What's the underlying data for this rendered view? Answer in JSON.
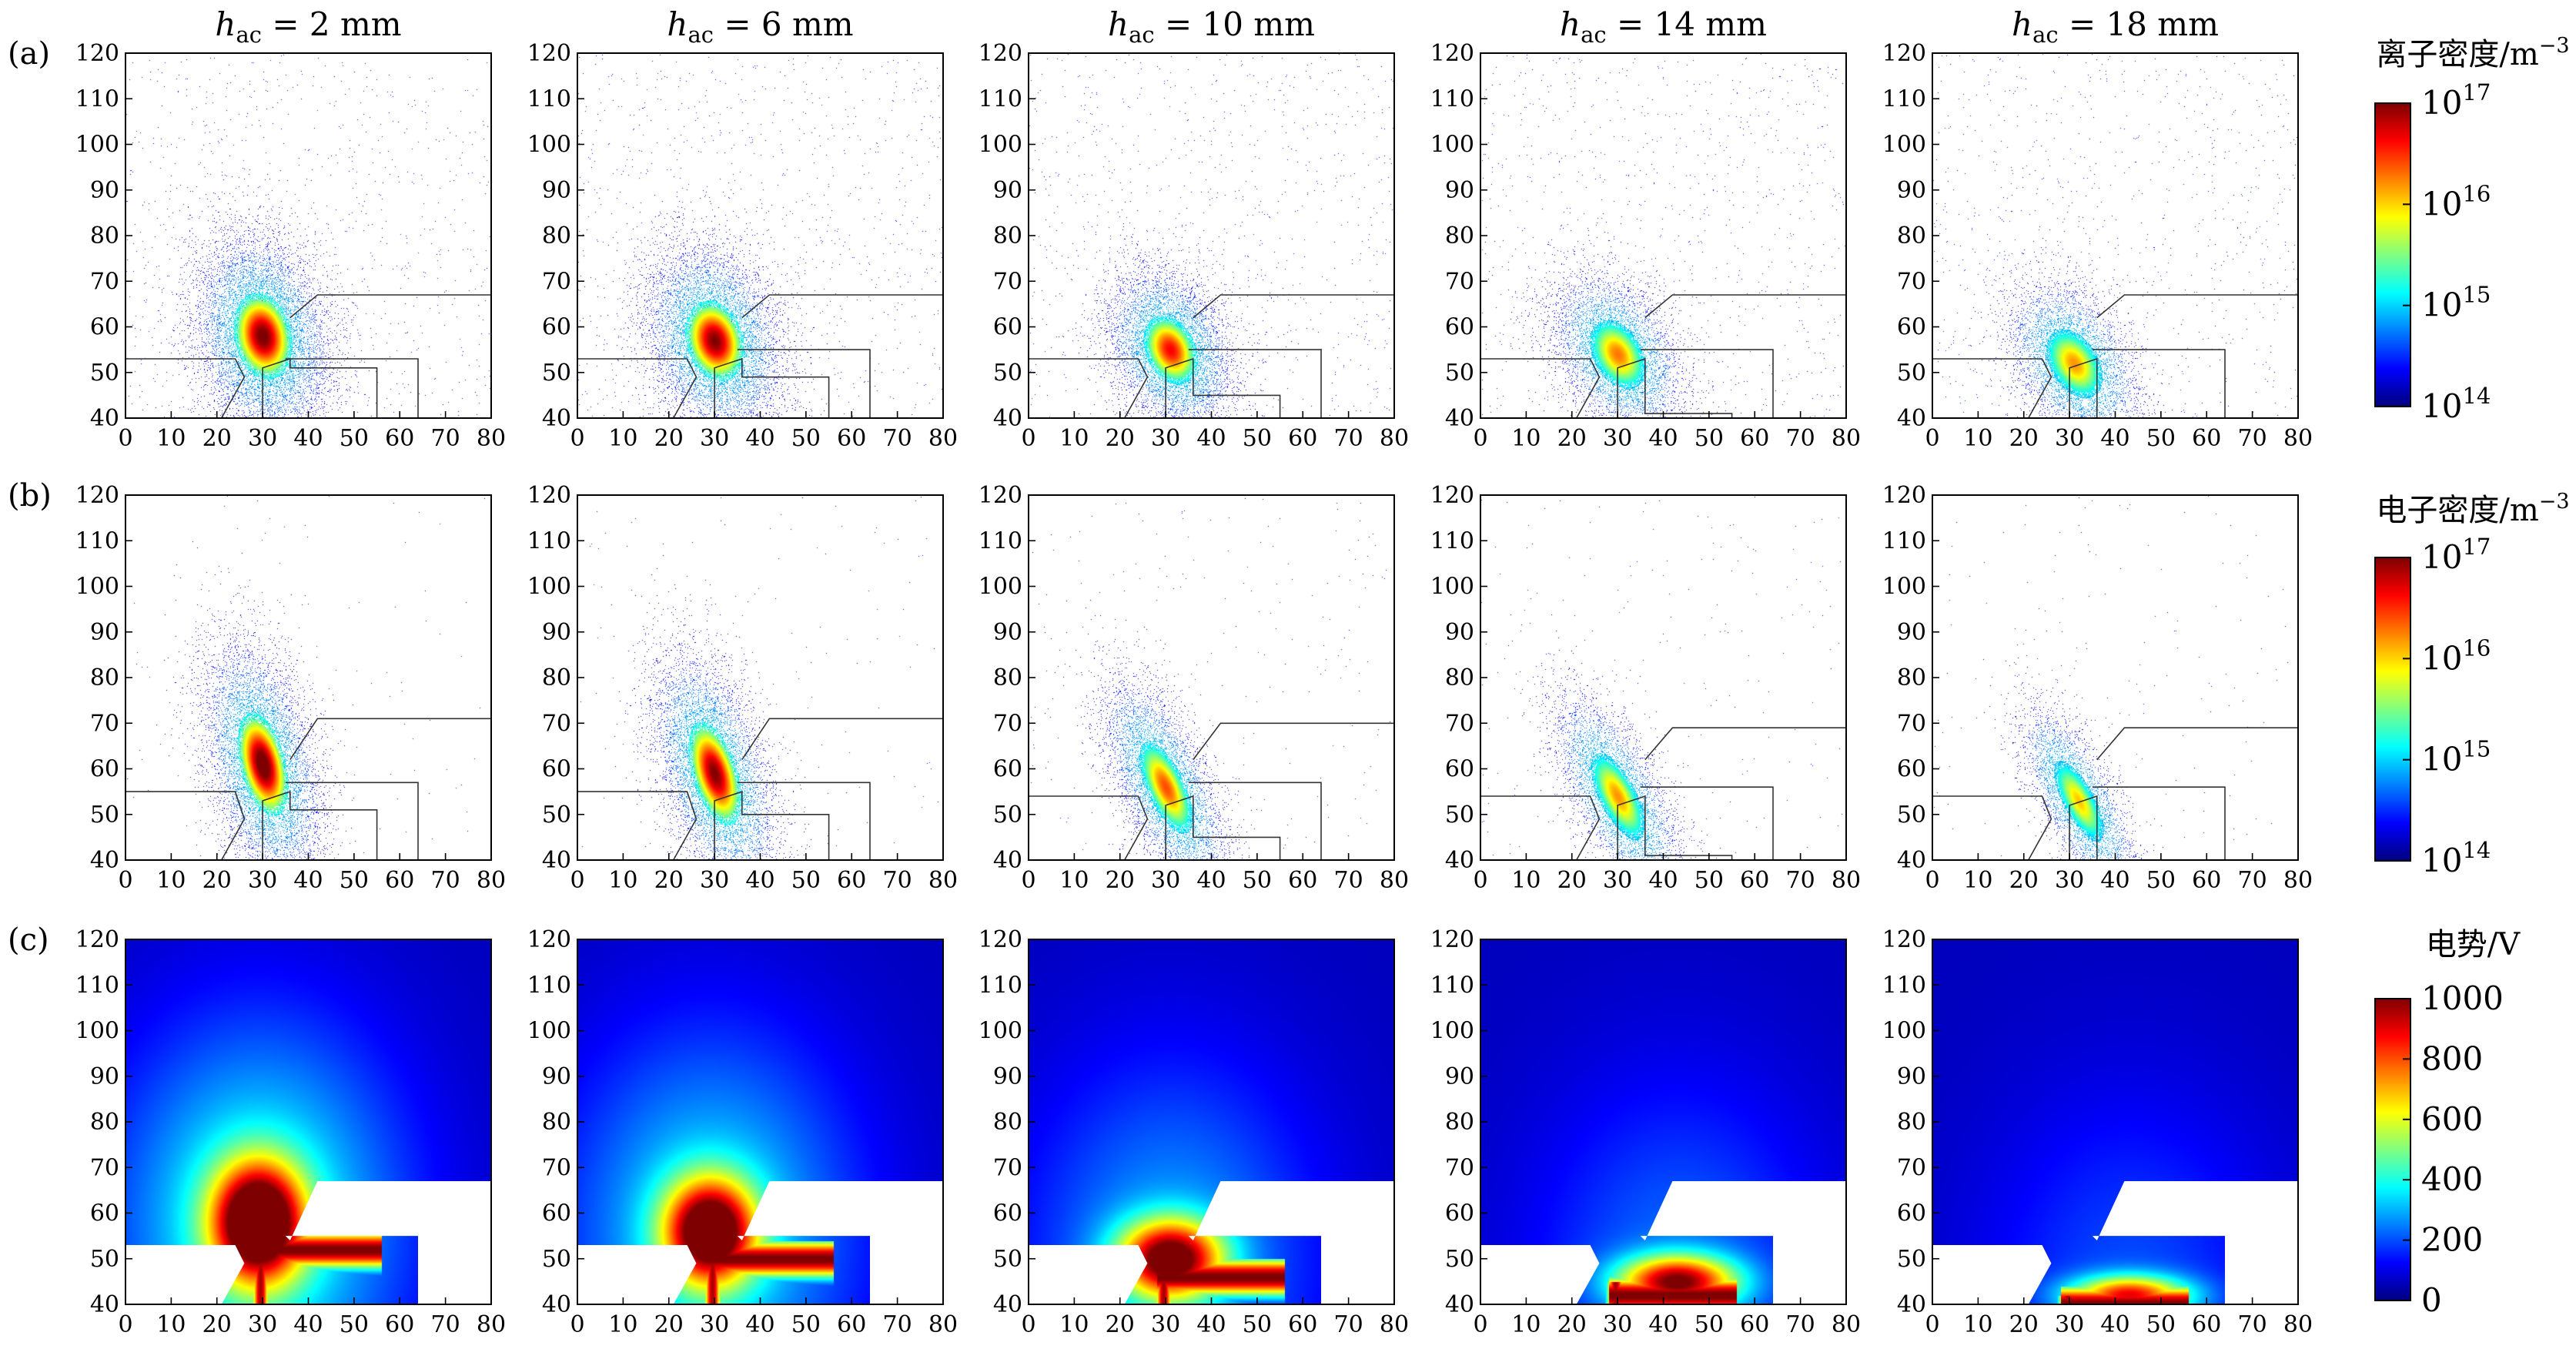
{
  "figure": {
    "column_titles": [
      {
        "pre": "h",
        "sub": "ac",
        "post": " = 2 mm"
      },
      {
        "pre": "h",
        "sub": "ac",
        "post": " = 6 mm"
      },
      {
        "pre": "h",
        "sub": "ac",
        "post": " = 10 mm"
      },
      {
        "pre": "h",
        "sub": "ac",
        "post": " = 14 mm"
      },
      {
        "pre": "h",
        "sub": "ac",
        "post": " = 18 mm"
      }
    ],
    "row_labels": [
      "(a)",
      "(b)",
      "(c)"
    ],
    "colorbars": [
      {
        "title": "离子密度/m",
        "title_sup": "−3",
        "scale": "log",
        "ticks": [
          {
            "base": "10",
            "exp": "17"
          },
          {
            "base": "10",
            "exp": "16"
          },
          {
            "base": "10",
            "exp": "15"
          },
          {
            "base": "10",
            "exp": "14"
          }
        ]
      },
      {
        "title": "电子密度/m",
        "title_sup": "−3",
        "scale": "log",
        "ticks": [
          {
            "base": "10",
            "exp": "17"
          },
          {
            "base": "10",
            "exp": "16"
          },
          {
            "base": "10",
            "exp": "15"
          },
          {
            "base": "10",
            "exp": "14"
          }
        ]
      },
      {
        "title": "电势/V",
        "title_sup": "",
        "scale": "linear",
        "ticks": [
          {
            "base": "1000"
          },
          {
            "base": "800"
          },
          {
            "base": "600"
          },
          {
            "base": "400"
          },
          {
            "base": "200"
          },
          {
            "base": "0"
          }
        ]
      }
    ],
    "colormap": [
      "#00007f",
      "#0000ff",
      "#0080ff",
      "#00ffff",
      "#80ff80",
      "#ffff00",
      "#ff8000",
      "#ff0000",
      "#7f0000"
    ]
  },
  "chart_data": {
    "type": "heatmap",
    "layout": "3 rows x 5 columns",
    "x_ticks": [
      0,
      10,
      20,
      30,
      40,
      50,
      60,
      70,
      80
    ],
    "y_ticks": [
      40,
      50,
      60,
      70,
      80,
      90,
      100,
      110,
      120
    ],
    "xlim": [
      0,
      80
    ],
    "ylim": [
      40,
      120
    ],
    "grid": false,
    "rows": [
      {
        "label": "(a)",
        "quantity": "ion density",
        "colorbar_index": 0,
        "colorbar_range": [
          "1e14",
          "1e17"
        ],
        "render": "scatter"
      },
      {
        "label": "(b)",
        "quantity": "electron density",
        "colorbar_index": 1,
        "colorbar_range": [
          "1e14",
          "1e17"
        ],
        "render": "scatter"
      },
      {
        "label": "(c)",
        "quantity": "potential",
        "colorbar_index": 2,
        "colorbar_range": [
          0,
          1000
        ],
        "render": "field"
      }
    ],
    "panels": [
      {
        "row": 0,
        "col": 0,
        "center": [
          30,
          58
        ],
        "sigma": [
          5,
          7.5
        ],
        "tilt": 0.12,
        "peak": 0.84,
        "halo_points": 9000,
        "background_points": 900,
        "bottom_block_top": 53,
        "anode_top": 53,
        "low_step_top": 51,
        "cathode_top": 67
      },
      {
        "row": 0,
        "col": 1,
        "center": [
          30,
          57
        ],
        "sigma": [
          5,
          7
        ],
        "tilt": 0.15,
        "peak": 0.82,
        "halo_points": 8000,
        "background_points": 900,
        "bottom_block_top": 53,
        "anode_top": 55,
        "low_step_top": 49,
        "cathode_top": 67
      },
      {
        "row": 0,
        "col": 2,
        "center": [
          31,
          55
        ],
        "sigma": [
          4.5,
          6
        ],
        "tilt": 0.22,
        "peak": 0.7,
        "halo_points": 6500,
        "background_points": 900,
        "bottom_block_top": 53,
        "anode_top": 55,
        "low_step_top": 45,
        "cathode_top": 67
      },
      {
        "row": 0,
        "col": 3,
        "center": [
          30,
          54
        ],
        "sigma": [
          4.5,
          6
        ],
        "tilt": 0.3,
        "peak": 0.58,
        "halo_points": 5500,
        "background_points": 900,
        "bottom_block_top": 53,
        "anode_top": 55,
        "low_step_top": 41,
        "cathode_top": 67
      },
      {
        "row": 0,
        "col": 4,
        "center": [
          31,
          52
        ],
        "sigma": [
          4.5,
          6
        ],
        "tilt": 0.32,
        "peak": 0.55,
        "halo_points": 5000,
        "background_points": 900,
        "bottom_block_top": 53,
        "anode_top": 55,
        "low_step_top": 37,
        "cathode_top": 67
      },
      {
        "row": 1,
        "col": 0,
        "center": [
          30,
          61
        ],
        "sigma": [
          4,
          9
        ],
        "tilt": 0.2,
        "peak": 0.88,
        "halo_points": 8000,
        "background_points": 120,
        "bottom_block_top": 55,
        "anode_top": 57,
        "low_step_top": 51,
        "cathode_top": 71
      },
      {
        "row": 1,
        "col": 1,
        "center": [
          30,
          59
        ],
        "sigma": [
          4,
          9
        ],
        "tilt": 0.25,
        "peak": 0.82,
        "halo_points": 7500,
        "background_points": 150,
        "bottom_block_top": 55,
        "anode_top": 57,
        "low_step_top": 50,
        "cathode_top": 71
      },
      {
        "row": 1,
        "col": 2,
        "center": [
          30,
          56
        ],
        "sigma": [
          3.5,
          8
        ],
        "tilt": 0.38,
        "peak": 0.62,
        "halo_points": 6000,
        "background_points": 250,
        "bottom_block_top": 54,
        "anode_top": 57,
        "low_step_top": 45,
        "cathode_top": 70
      },
      {
        "row": 1,
        "col": 3,
        "center": [
          30,
          54
        ],
        "sigma": [
          3.5,
          7.5
        ],
        "tilt": 0.42,
        "peak": 0.55,
        "halo_points": 5000,
        "background_points": 220,
        "bottom_block_top": 54,
        "anode_top": 56,
        "low_step_top": 41,
        "cathode_top": 69
      },
      {
        "row": 1,
        "col": 4,
        "center": [
          32,
          53
        ],
        "sigma": [
          3,
          7
        ],
        "tilt": 0.45,
        "peak": 0.5,
        "halo_points": 4000,
        "background_points": 180,
        "bottom_block_top": 54,
        "anode_top": 56,
        "low_step_top": 37,
        "cathode_top": 69
      },
      {
        "row": 2,
        "col": 0,
        "center": [
          29,
          58
        ],
        "sigma": [
          7,
          9
        ],
        "tilt": 0,
        "peak": 0.95,
        "spread": 1.0,
        "hot_plate_top": 53,
        "hot_plate_bottom": 51,
        "bottom_block_top": 53,
        "anode_top": 55,
        "low_step_top": 51,
        "cathode_top": 67
      },
      {
        "row": 2,
        "col": 1,
        "center": [
          29,
          56
        ],
        "sigma": [
          7,
          8
        ],
        "tilt": 0,
        "peak": 0.9,
        "spread": 0.85,
        "hot_plate_top": 51,
        "hot_plate_bottom": 49,
        "bottom_block_top": 53,
        "anode_top": 55,
        "low_step_top": 49,
        "cathode_top": 67
      },
      {
        "row": 2,
        "col": 2,
        "center": [
          31,
          50
        ],
        "sigma": [
          8,
          6
        ],
        "tilt": 0,
        "peak": 0.85,
        "spread": 0.65,
        "hot_plate_top": 47,
        "hot_plate_bottom": 45,
        "bottom_block_top": 53,
        "anode_top": 55,
        "low_step_top": 45,
        "cathode_top": 67
      },
      {
        "row": 2,
        "col": 3,
        "center": [
          43,
          45
        ],
        "sigma": [
          9,
          4
        ],
        "tilt": 0,
        "peak": 0.8,
        "spread": 0.5,
        "hot_plate_top": 43,
        "hot_plate_bottom": 41,
        "bottom_block_top": 53,
        "anode_top": 55,
        "low_step_top": 41,
        "cathode_top": 67
      },
      {
        "row": 2,
        "col": 4,
        "center": [
          43,
          42
        ],
        "sigma": [
          9,
          3
        ],
        "tilt": 0,
        "peak": 0.7,
        "spread": 0.4,
        "hot_plate_top": 41,
        "hot_plate_bottom": 39,
        "bottom_block_top": 53,
        "anode_top": 55,
        "low_step_top": 37,
        "cathode_top": 67
      }
    ]
  }
}
